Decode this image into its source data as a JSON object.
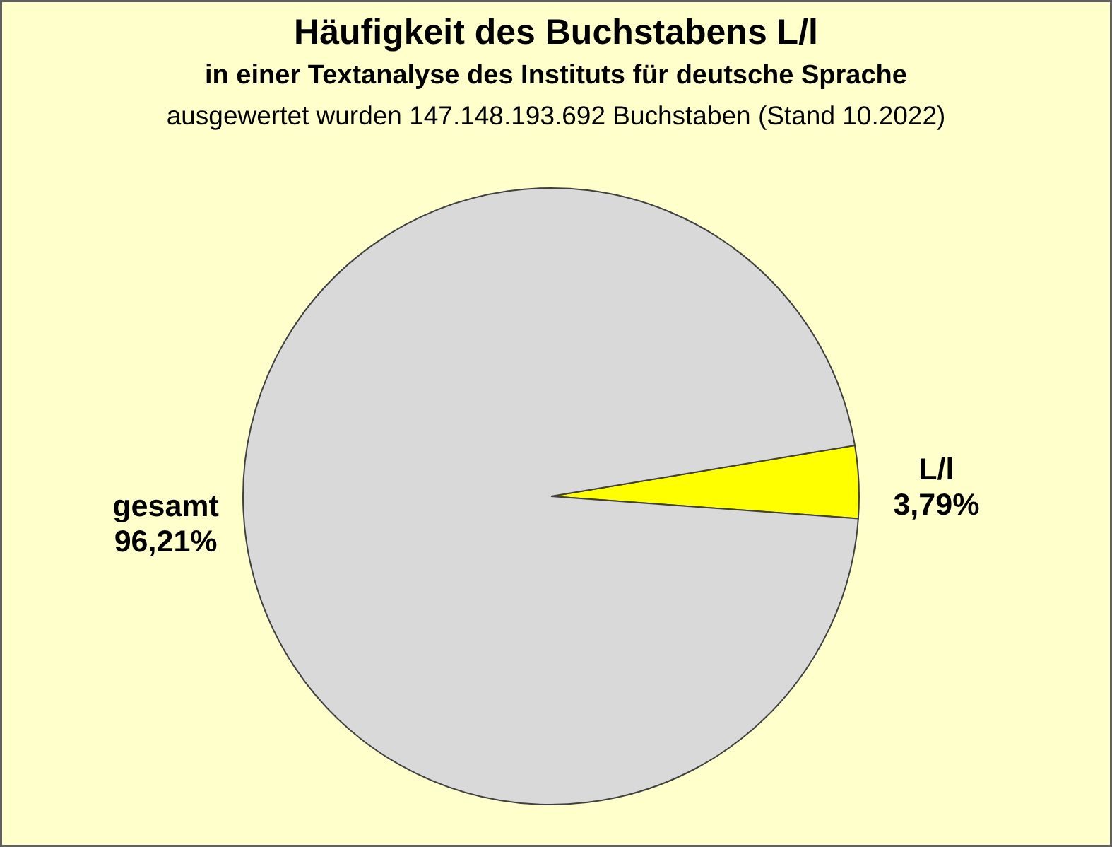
{
  "chart_data": {
    "type": "pie",
    "title": "Häufigkeit des Buchstabens L/l",
    "subtitle": "in einer Textanalyse des Instituts für deutsche Sprache",
    "annotations": [
      "ausgewertet wurden 147.148.193.692 Buchstaben (Stand 10.2022)"
    ],
    "categories": [
      "L/l",
      "gesamt"
    ],
    "values": [
      3.79,
      96.21
    ],
    "colors": [
      "#ffff00",
      "#d9d9d9"
    ],
    "value_labels": [
      "3,79%",
      "96,21%"
    ]
  }
}
